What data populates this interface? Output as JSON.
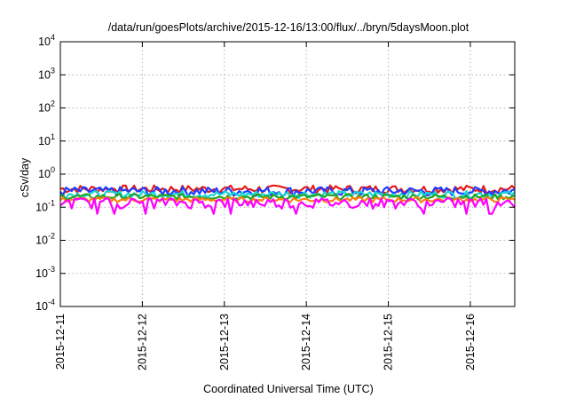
{
  "chart_data": {
    "type": "line",
    "title": "/data/run/goesPlots/archive/2015-12-16/13:00/flux/../bryn/5daysMoon.plot",
    "xlabel": "Coordinated Universal Time (UTC)",
    "ylabel": "cSv/day",
    "y_scale": "log",
    "ylim": [
      0.0001,
      10000
    ],
    "y_ticks": [
      {
        "base": "10",
        "exp": "-4",
        "value": 0.0001
      },
      {
        "base": "10",
        "exp": "-3",
        "value": 0.001
      },
      {
        "base": "10",
        "exp": "-2",
        "value": 0.01
      },
      {
        "base": "10",
        "exp": "-1",
        "value": 0.1
      },
      {
        "base": "10",
        "exp": "0",
        "value": 1
      },
      {
        "base": "10",
        "exp": "1",
        "value": 10
      },
      {
        "base": "10",
        "exp": "2",
        "value": 100
      },
      {
        "base": "10",
        "exp": "3",
        "value": 1000
      },
      {
        "base": "10",
        "exp": "4",
        "value": 10000
      }
    ],
    "x_ticks": [
      "2015-12-11",
      "2015-12-12",
      "2015-12-13",
      "2015-12-14",
      "2015-12-15",
      "2015-12-16"
    ],
    "xlim": [
      "2015-12-11 00:00",
      "2015-12-16 13:00"
    ],
    "grid": true,
    "series": [
      {
        "color": "#e41a1c",
        "mean": 0.36,
        "noise": 0.1
      },
      {
        "color": "#1f3cff",
        "mean": 0.31,
        "noise": 0.1
      },
      {
        "color": "#17d6d6",
        "mean": 0.25,
        "noise": 0.06
      },
      {
        "color": "#22a322",
        "mean": 0.21,
        "noise": 0.04
      },
      {
        "color": "#ff7f0e",
        "mean": 0.17,
        "noise": 0.03
      },
      {
        "color": "#ff00ff",
        "mean": 0.14,
        "noise": 0.05
      }
    ]
  }
}
